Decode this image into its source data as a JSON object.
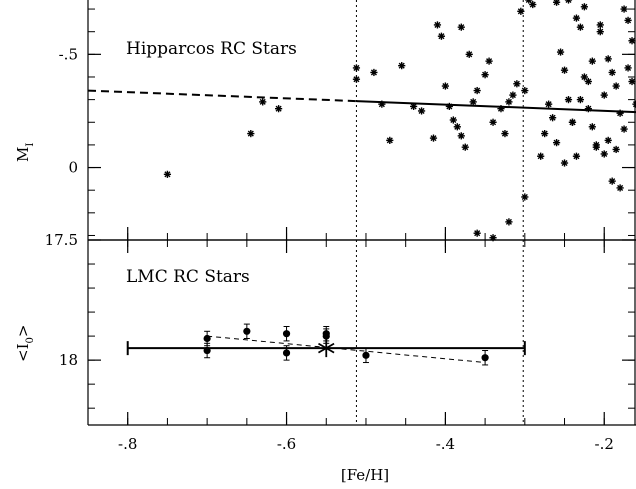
{
  "chart_data": [
    {
      "type": "scatter",
      "panel": "top",
      "annotation": "Hipparcos RC Stars",
      "ylabel_main": "M",
      "ylabel_sub": "I",
      "y_inverted": true,
      "xlim": [
        -0.85,
        -0.16
      ],
      "ylim": [
        -0.74,
        0.32
      ],
      "y_ticks": [
        -0.5,
        0
      ],
      "y_tick_labels": [
        "-.5",
        "0"
      ],
      "y_minor_step": 0.1,
      "vertical_lines": [
        -0.512,
        -0.302
      ],
      "fit_line": {
        "x": [
          -0.85,
          -0.16
        ],
        "y": [
          -0.34,
          -0.245
        ],
        "dashed_until_x": -0.512
      },
      "series": [
        {
          "marker": "asterisk",
          "x": [
            -0.75,
            -0.645,
            -0.63,
            -0.61,
            -0.512,
            -0.512,
            -0.49,
            -0.48,
            -0.47,
            -0.455,
            -0.44,
            -0.43,
            -0.415,
            -0.41,
            -0.405,
            -0.4,
            -0.395,
            -0.39,
            -0.385,
            -0.38,
            -0.375,
            -0.37,
            -0.365,
            -0.36,
            -0.35,
            -0.345,
            -0.34,
            -0.33,
            -0.325,
            -0.32,
            -0.315,
            -0.31,
            -0.305,
            -0.3,
            -0.295,
            -0.29,
            -0.28,
            -0.275,
            -0.27,
            -0.265,
            -0.26,
            -0.255,
            -0.25,
            -0.245,
            -0.24,
            -0.235,
            -0.23,
            -0.225,
            -0.22,
            -0.215,
            -0.21,
            -0.205,
            -0.2,
            -0.195,
            -0.19,
            -0.185,
            -0.18,
            -0.175,
            -0.17,
            -0.165,
            -0.16,
            -0.245,
            -0.235,
            -0.225,
            -0.215,
            -0.205,
            -0.195,
            -0.185,
            -0.175,
            -0.3,
            -0.32,
            -0.34,
            -0.36,
            -0.38,
            -0.26,
            -0.25,
            -0.24,
            -0.23,
            -0.22,
            -0.21,
            -0.2,
            -0.19,
            -0.18,
            -0.17,
            -0.165
          ],
          "y": [
            0.03,
            -0.15,
            -0.29,
            -0.26,
            -0.44,
            -0.39,
            -0.42,
            -0.28,
            -0.12,
            -0.45,
            -0.27,
            -0.25,
            -0.13,
            -0.63,
            -0.58,
            -0.36,
            -0.27,
            -0.21,
            -0.18,
            -0.14,
            -0.09,
            -0.5,
            -0.29,
            -0.34,
            -0.41,
            -0.47,
            -0.2,
            -0.26,
            -0.15,
            -0.29,
            -0.32,
            -0.37,
            -0.69,
            -0.34,
            -0.74,
            -0.72,
            -0.05,
            -0.15,
            -0.28,
            -0.22,
            -0.11,
            -0.51,
            -0.02,
            -0.3,
            -0.2,
            -0.05,
            -0.62,
            -0.4,
            -0.26,
            -0.18,
            -0.09,
            -0.63,
            -0.32,
            -0.48,
            -0.42,
            -0.36,
            -0.24,
            -0.7,
            -0.65,
            -0.56,
            -0.28,
            -0.74,
            -0.66,
            -0.71,
            -0.47,
            -0.6,
            -0.12,
            -0.08,
            -0.17,
            0.13,
            0.24,
            0.31,
            0.29,
            -0.62,
            -0.73,
            -0.43,
            -0.2,
            -0.3,
            -0.38,
            -0.1,
            -0.06,
            0.06,
            0.09,
            -0.44,
            -0.38
          ]
        }
      ]
    },
    {
      "type": "scatter",
      "panel": "bottom",
      "annotation": "LMC RC Stars",
      "ylabel_main": "<I",
      "ylabel_sub": "0",
      "ylabel_end": ">",
      "y_inverted": true,
      "xlim": [
        -0.85,
        -0.16
      ],
      "ylim": [
        17.5,
        18.27
      ],
      "y_ticks": [
        17.5,
        18
      ],
      "y_tick_labels": [
        "17.5",
        "18"
      ],
      "y_minor_step": 0.1,
      "x_ticks": [
        -0.8,
        -0.6,
        -0.4,
        -0.2
      ],
      "x_tick_labels": [
        "-.8",
        "-.6",
        "-.4",
        "-.2"
      ],
      "x_minor_step": 0.05,
      "xlabel": "[Fe/H]",
      "vertical_lines": [
        -0.512,
        -0.302
      ],
      "mean_line": {
        "x": [
          -0.8,
          -0.3
        ],
        "y": 17.95,
        "center_marker": {
          "x": -0.55,
          "y": 17.95,
          "marker": "star"
        }
      },
      "trend_line": {
        "x": [
          -0.7,
          -0.35
        ],
        "y": [
          17.9,
          18.01
        ]
      },
      "series": [
        {
          "marker": "filled-circle-errorbar",
          "x": [
            -0.7,
            -0.7,
            -0.65,
            -0.6,
            -0.6,
            -0.55,
            -0.55,
            -0.5,
            -0.35
          ],
          "y": [
            17.91,
            17.96,
            17.88,
            17.89,
            17.97,
            17.89,
            17.9,
            17.98,
            17.99
          ],
          "yerr": [
            0.03,
            0.03,
            0.03,
            0.03,
            0.03,
            0.03,
            0.03,
            0.03,
            0.03
          ]
        }
      ]
    }
  ]
}
